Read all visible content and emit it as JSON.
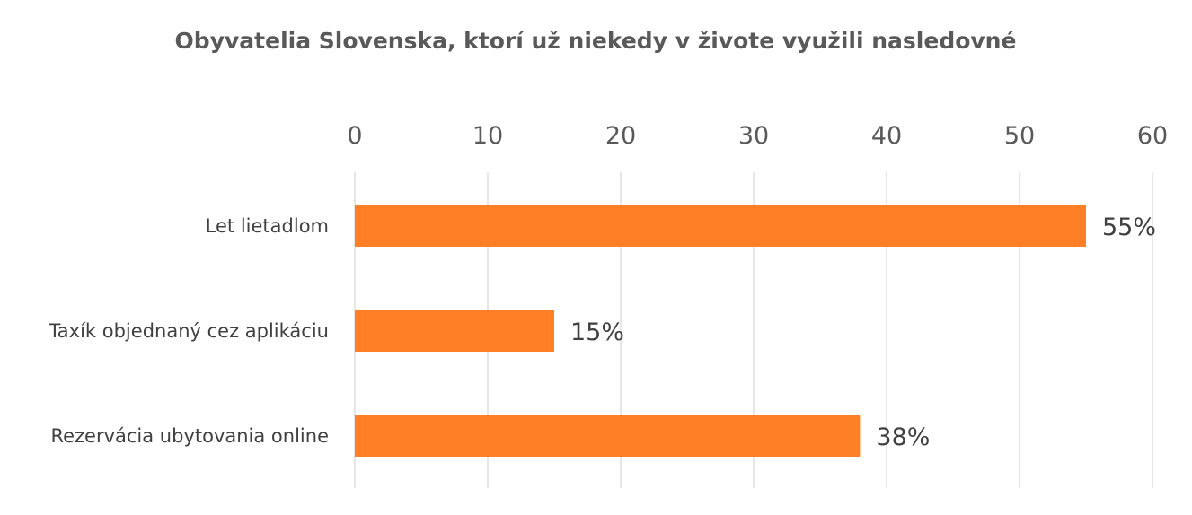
{
  "chart_data": {
    "type": "bar",
    "orientation": "horizontal",
    "title": "Obyvatelia Slovenska, ktorí už niekedy v živote využili nasledovné",
    "categories": [
      "Let lietadlom",
      "Taxík objednaný cez aplikáciu",
      "Rezervácia ubytovania online"
    ],
    "values": [
      55,
      15,
      38
    ],
    "data_labels": [
      "55%",
      "15%",
      "38%"
    ],
    "xlim": [
      0,
      60
    ],
    "x_ticks": [
      "0",
      "10",
      "20",
      "30",
      "40",
      "50",
      "60"
    ],
    "x_axis_position": "top",
    "grid": true,
    "legend": "none",
    "bar_color": "#FF7F27",
    "grid_color": "#D9D9D9",
    "text_color": "#595959"
  }
}
